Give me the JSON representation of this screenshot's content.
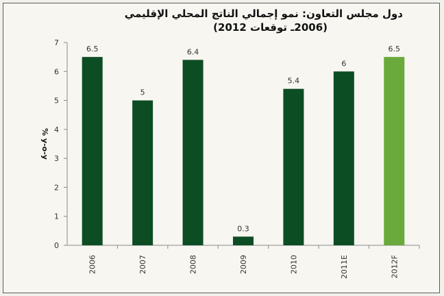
{
  "chart_data": {
    "type": "bar",
    "title_line1": "دول مجلس التعاون: نمو إجمالي الناتج المحلي الإقليمي",
    "title_line2": "(2006ـ توقعات 2012)",
    "xlabel": "",
    "ylabel": "% y-o-y",
    "ylim": [
      0,
      7
    ],
    "yticks": [
      "0",
      "1",
      "2",
      "3",
      "4",
      "5",
      "6",
      "7"
    ],
    "grid": false,
    "categories": [
      "2006",
      "2007",
      "2008",
      "2009",
      "2010",
      "2011E",
      "2012F"
    ],
    "values": [
      6.5,
      5,
      6.4,
      0.3,
      5.4,
      6,
      6.5
    ],
    "value_labels": [
      "6.5",
      "5",
      "6.4",
      "0.3",
      "5.4",
      "6",
      "6.5"
    ],
    "colors": [
      "#0d4d24",
      "#0d4d24",
      "#0d4d24",
      "#0d4d24",
      "#0d4d24",
      "#0d4d24",
      "#6aa93c"
    ]
  }
}
